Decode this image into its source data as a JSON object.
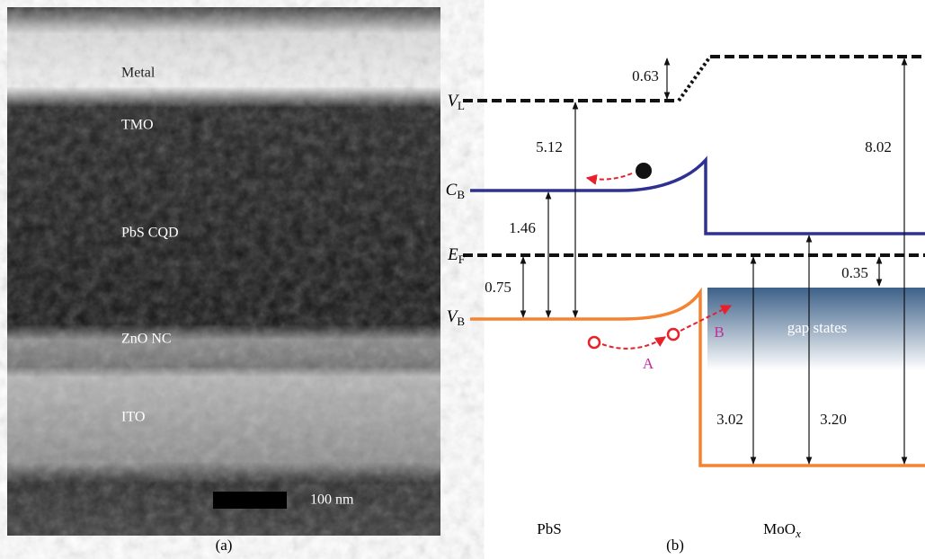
{
  "panel_a": {
    "layers": [
      "Metal",
      "TMO",
      "PbS CQD",
      "ZnO NC",
      "ITO"
    ],
    "scale_bar": "100 nm",
    "caption": "(a)"
  },
  "panel_b": {
    "levels": [
      {
        "main": "V",
        "sub": "L"
      },
      {
        "main": "C",
        "sub": "B"
      },
      {
        "main": "E",
        "sub": "F"
      },
      {
        "main": "V",
        "sub": "B"
      }
    ],
    "energies": [
      "0.63",
      "5.12",
      "1.46",
      "0.75",
      "8.02",
      "0.35",
      "3.02",
      "3.20"
    ],
    "gap_states": "gap states",
    "process_a": "A",
    "process_b": "B",
    "materials": [
      {
        "main": "PbS"
      },
      {
        "main": "MoO",
        "sub": "x"
      }
    ],
    "caption": "(b)"
  }
}
